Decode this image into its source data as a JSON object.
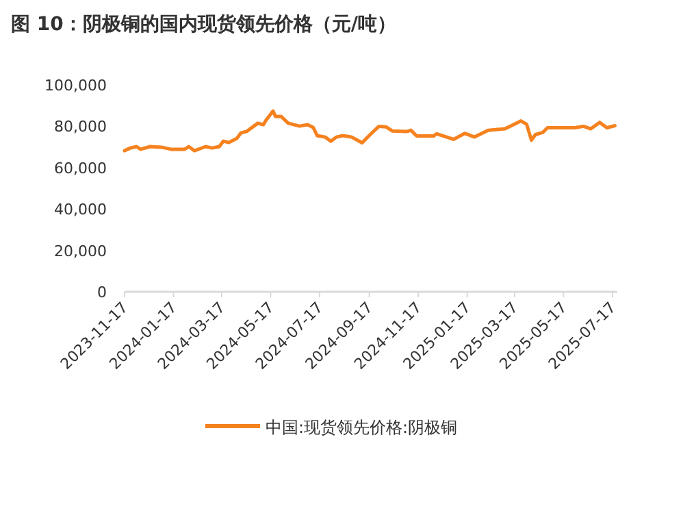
{
  "chart_data": {
    "type": "line",
    "title": "图 10：阴极铜的国内现货领先价格（元/吨）",
    "x": [
      "2023-11-17",
      "2023-11-24",
      "2023-12-02",
      "2023-12-07",
      "2023-12-19",
      "2024-01-02",
      "2024-01-14",
      "2024-01-31",
      "2024-02-05",
      "2024-02-12",
      "2024-02-26",
      "2024-03-05",
      "2024-03-14",
      "2024-03-19",
      "2024-03-26",
      "2024-04-05",
      "2024-04-10",
      "2024-04-17",
      "2024-05-01",
      "2024-05-08",
      "2024-05-11",
      "2024-05-20",
      "2024-05-23",
      "2024-05-30",
      "2024-06-08",
      "2024-06-22",
      "2024-07-02",
      "2024-07-09",
      "2024-07-14",
      "2024-07-24",
      "2024-07-31",
      "2024-08-07",
      "2024-08-15",
      "2024-08-26",
      "2024-09-08",
      "2024-09-18",
      "2024-09-29",
      "2024-10-08",
      "2024-10-16",
      "2024-11-03",
      "2024-11-08",
      "2024-11-15",
      "2024-12-06",
      "2024-12-10",
      "2024-12-31",
      "2025-01-14",
      "2025-01-26",
      "2025-02-12",
      "2025-03-05",
      "2025-03-13",
      "2025-03-25",
      "2025-04-01",
      "2025-04-07",
      "2025-04-12",
      "2025-04-21",
      "2025-04-27",
      "2025-05-31",
      "2025-06-11",
      "2025-06-20",
      "2025-07-01",
      "2025-07-10",
      "2025-07-20"
    ],
    "series": [
      {
        "name": "中国:现货领先价格:阴极铜",
        "color": "#f5821f",
        "values": [
          68200,
          69500,
          70200,
          68900,
          70200,
          69900,
          68900,
          68900,
          70200,
          68200,
          70200,
          69500,
          70200,
          72800,
          72200,
          74200,
          76800,
          77500,
          81500,
          80800,
          82800,
          87400,
          84800,
          84800,
          81500,
          80100,
          80800,
          79500,
          75500,
          74800,
          72800,
          74800,
          75500,
          74800,
          72000,
          76000,
          80000,
          79700,
          77700,
          77500,
          78100,
          75300,
          75300,
          76400,
          73700,
          76600,
          74800,
          78100,
          78800,
          80300,
          82600,
          81000,
          73300,
          76000,
          77000,
          79300,
          79300,
          80000,
          78800,
          81900,
          79300,
          80300
        ]
      }
    ],
    "xlim": [
      "2023-11-17",
      "2025-07-23"
    ],
    "xticks": [
      "2023-11-17",
      "2024-01-17",
      "2024-03-17",
      "2024-05-17",
      "2024-07-17",
      "2024-09-17",
      "2024-11-17",
      "2025-01-17",
      "2025-03-17",
      "2025-05-17",
      "2025-07-17"
    ],
    "ylim": [
      0,
      100000
    ],
    "yticks": [
      0,
      {
        "value": 20000,
        "label": "20,000"
      },
      {
        "value": 40000,
        "label": "40,000"
      },
      {
        "value": 60000,
        "label": "60,000"
      },
      {
        "value": 80000,
        "label": "80,000"
      },
      {
        "value": 100000,
        "label": "100,000"
      }
    ],
    "grid": false,
    "legend": "bottom",
    "marker": "none",
    "line_style": "solid"
  }
}
